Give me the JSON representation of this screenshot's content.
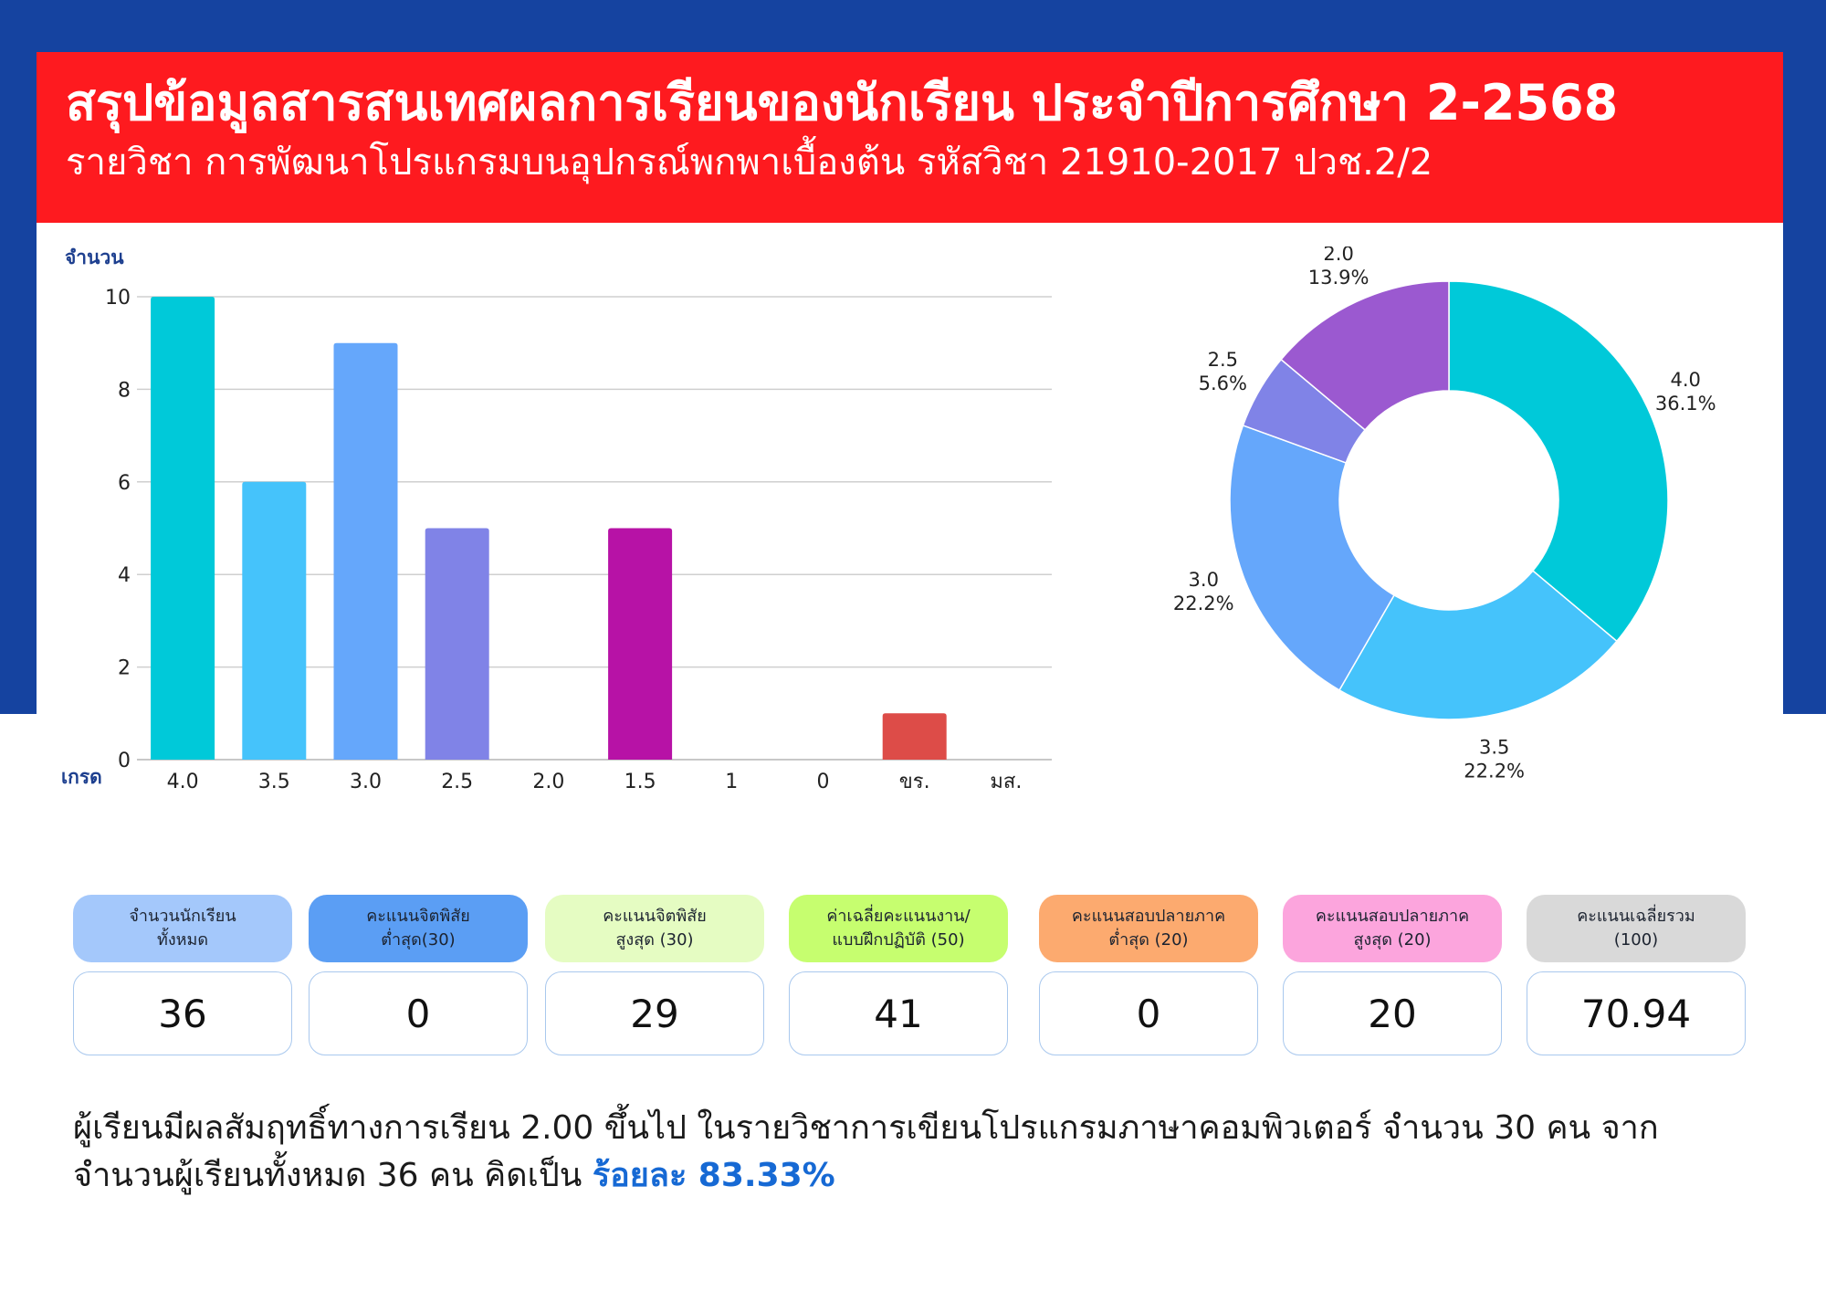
{
  "header": {
    "title": "สรุปข้อมูลสารสนเทศผลการเรียนของนักเรียน ประจำปีการศึกษา 2-2568",
    "subtitle": "รายวิชา  การพัฒนาโปรแกรมบนอุปกรณ์พกพาเบื้องต้น รหัสวิชา 21910-2017 ปวช.2/2"
  },
  "chart_data": [
    {
      "type": "bar",
      "ylabel": "จำนวน",
      "xlabel": "เกรด",
      "categories": [
        "4.0",
        "3.5",
        "3.0",
        "2.5",
        "2.0",
        "1.5",
        "1",
        "0",
        "ขร.",
        "มส."
      ],
      "values": [
        10,
        6,
        9,
        5,
        0,
        5,
        0,
        0,
        1,
        0
      ],
      "colors": [
        "#00c9d9",
        "#45c3fb",
        "#65a7fb",
        "#8083e7",
        "#9b59d0",
        "#b712a6",
        "#d9539b",
        "#e6556f",
        "#dd4c48",
        "#e08a3c"
      ],
      "ylim": [
        0,
        10
      ],
      "yticks": [
        0,
        2,
        4,
        6,
        8,
        10
      ],
      "grid": true
    },
    {
      "type": "pie",
      "variant": "donut",
      "slices": [
        {
          "label": "4.0",
          "percent": "36.1%",
          "value": 13,
          "color": "#00c9d9"
        },
        {
          "label": "3.5",
          "percent": "22.2%",
          "value": 8,
          "color": "#45c3fb"
        },
        {
          "label": "3.0",
          "percent": "22.2%",
          "value": 8,
          "color": "#65a7fb"
        },
        {
          "label": "2.5",
          "percent": "5.6%",
          "value": 2,
          "color": "#8083e7"
        },
        {
          "label": "2.0",
          "percent": "13.9%",
          "value": 5,
          "color": "#9b59d0"
        }
      ]
    }
  ],
  "stats": [
    {
      "label": "จำนวนนักเรียน\nทั้งหมด",
      "value": "36",
      "color": "#a4c8fb"
    },
    {
      "label": "คะแนนจิตพิสัย\nต่ำสุด(30)",
      "value": "0",
      "color": "#5b9ef4"
    },
    {
      "label": "คะแนนจิตพิสัย\nสูงสุด (30)",
      "value": "29",
      "color": "#e5fcc2"
    },
    {
      "label": "ค่าเฉลี่ยคะแนนงาน/\nแบบฝึกปฏิบัติ (50)",
      "value": "41",
      "color": "#c6fe6f"
    },
    {
      "label": "คะแนนสอบปลายภาค\nต่ำสุด (20)",
      "value": "0",
      "color": "#fcaa6f"
    },
    {
      "label": "คะแนนสอบปลายภาค\nสูงสุด (20)",
      "value": "20",
      "color": "#fca5dd"
    },
    {
      "label": "คะแนนเฉลี่ยรวม\n(100)",
      "value": "70.94",
      "color": "#d9d9d9"
    }
  ],
  "summary": {
    "text": "ผู้เรียนมีผลสัมฤทธิ์ทางการเรียน 2.00 ขึ้นไป ในรายวิชาการเขียนโปรแกรมภาษาคอมพิวเตอร์ จำนวน 30 คน จากจำนวนผู้เรียนทั้งหมด 36 คน คิดเป็น ",
    "highlight": "ร้อยละ 83.33%"
  }
}
